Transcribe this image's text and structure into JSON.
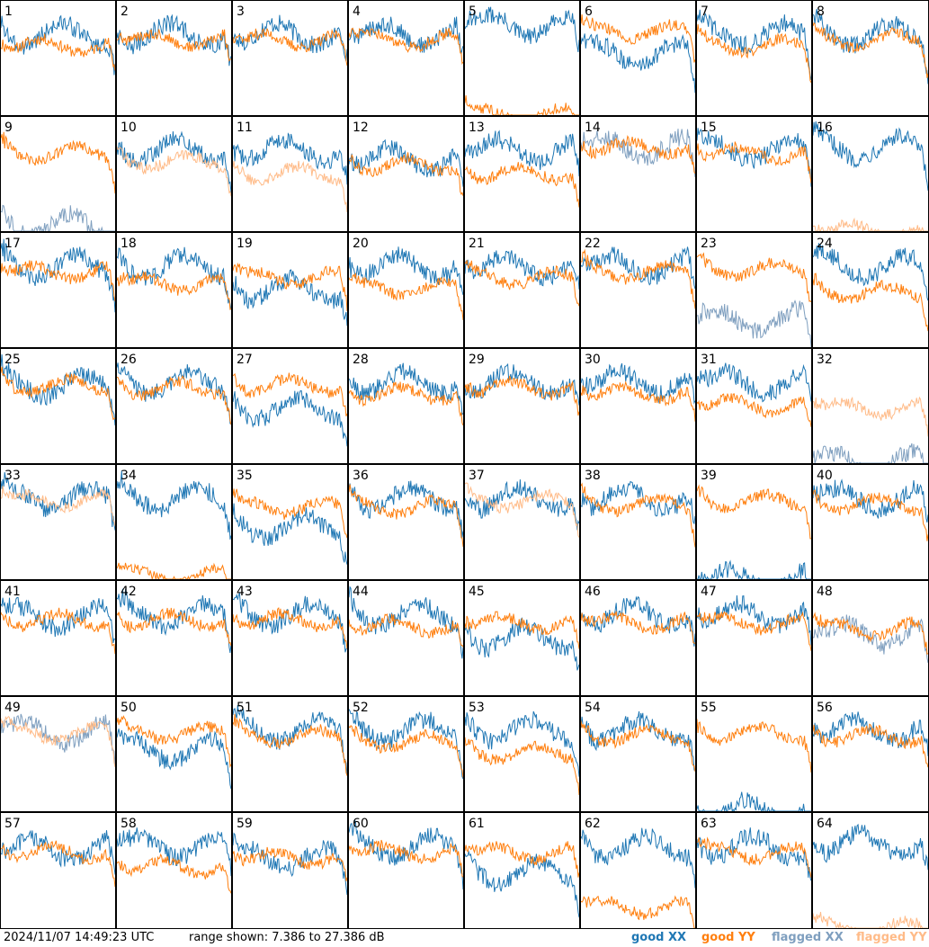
{
  "footer": {
    "timestamp": "2024/11/07 14:49:23 UTC",
    "range": "range shown: 7.386 to 27.386 dB",
    "legend_good_xx": "good XX",
    "legend_good_yy": "good YY",
    "legend_flagged_xx": "flagged XX",
    "legend_flagged_yy": "flagged YY"
  },
  "colors": {
    "good_xx": "#1f77b4",
    "good_yy": "#ff7f0e",
    "flagged_xx": "#7f9fbf",
    "flagged_yy": "#ffbb88",
    "frame": "#000000",
    "background": "#ffffff"
  },
  "chart_data": {
    "type": "line",
    "layout": "8x8 small multiples",
    "ylim": [
      7.386,
      27.386
    ],
    "yunit": "dB",
    "series_legend": [
      "good XX",
      "good YY",
      "flagged XX",
      "flagged YY"
    ],
    "panels": [
      {
        "label": "1",
        "xx": "good",
        "yy": "good",
        "xx_level": 21.5,
        "yy_level": 19.5
      },
      {
        "label": "2",
        "xx": "good",
        "yy": "good",
        "xx_level": 21.5,
        "yy_level": 20.5
      },
      {
        "label": "3",
        "xx": "good",
        "yy": "good",
        "xx_level": 21.5,
        "yy_level": 20.5
      },
      {
        "label": "4",
        "xx": "good",
        "yy": "good",
        "xx_level": 21.5,
        "yy_level": 20.5
      },
      {
        "label": "5",
        "xx": "good",
        "yy": "good",
        "xx_level": 23.0,
        "yy_level": 7.4
      },
      {
        "label": "6",
        "xx": "good",
        "yy": "good",
        "xx_level": 18.0,
        "yy_level": 22.0
      },
      {
        "label": "7",
        "xx": "good",
        "yy": "good",
        "xx_level": 21.5,
        "yy_level": 19.5
      },
      {
        "label": "8",
        "xx": "good",
        "yy": "good",
        "xx_level": 21.5,
        "yy_level": 20.5
      },
      {
        "label": "9",
        "xx": "flagged",
        "yy": "good",
        "xx_level": 8.5,
        "yy_level": 21.0
      },
      {
        "label": "10",
        "xx": "good",
        "yy": "flagged",
        "xx_level": 21.5,
        "yy_level": 19.5
      },
      {
        "label": "11",
        "xx": "good",
        "yy": "flagged",
        "xx_level": 21.5,
        "yy_level": 17.5
      },
      {
        "label": "12",
        "xx": "good",
        "yy": "good",
        "xx_level": 20.0,
        "yy_level": 19.0
      },
      {
        "label": "13",
        "xx": "good",
        "yy": "good",
        "xx_level": 21.5,
        "yy_level": 17.5
      },
      {
        "label": "14",
        "xx": "flagged",
        "yy": "good",
        "xx_level": 22.0,
        "yy_level": 22.0
      },
      {
        "label": "15",
        "xx": "good",
        "yy": "good",
        "xx_level": 21.5,
        "yy_level": 21.0
      },
      {
        "label": "16",
        "xx": "good",
        "yy": "flagged",
        "xx_level": 22.0,
        "yy_level": 7.4
      },
      {
        "label": "17",
        "xx": "good",
        "yy": "good",
        "xx_level": 21.5,
        "yy_level": 20.5
      },
      {
        "label": "18",
        "xx": "good",
        "yy": "good",
        "xx_level": 21.5,
        "yy_level": 18.5
      },
      {
        "label": "19",
        "xx": "good",
        "yy": "good",
        "xx_level": 17.5,
        "yy_level": 19.5
      },
      {
        "label": "20",
        "xx": "good",
        "yy": "good",
        "xx_level": 21.5,
        "yy_level": 17.5
      },
      {
        "label": "21",
        "xx": "good",
        "yy": "good",
        "xx_level": 21.5,
        "yy_level": 19.5
      },
      {
        "label": "22",
        "xx": "good",
        "yy": "good",
        "xx_level": 21.5,
        "yy_level": 20.5
      },
      {
        "label": "23",
        "xx": "flagged",
        "yy": "good",
        "xx_level": 12.0,
        "yy_level": 21.0
      },
      {
        "label": "24",
        "xx": "good",
        "yy": "good",
        "xx_level": 21.5,
        "yy_level": 17.0
      },
      {
        "label": "25",
        "xx": "good",
        "yy": "good",
        "xx_level": 21.0,
        "yy_level": 21.0
      },
      {
        "label": "26",
        "xx": "good",
        "yy": "good",
        "xx_level": 21.5,
        "yy_level": 20.5
      },
      {
        "label": "27",
        "xx": "good",
        "yy": "good",
        "xx_level": 17.0,
        "yy_level": 21.0
      },
      {
        "label": "28",
        "xx": "good",
        "yy": "good",
        "xx_level": 21.5,
        "yy_level": 19.5
      },
      {
        "label": "29",
        "xx": "good",
        "yy": "good",
        "xx_level": 21.5,
        "yy_level": 20.5
      },
      {
        "label": "30",
        "xx": "good",
        "yy": "good",
        "xx_level": 21.5,
        "yy_level": 19.5
      },
      {
        "label": "31",
        "xx": "good",
        "yy": "good",
        "xx_level": 21.5,
        "yy_level": 17.5
      },
      {
        "label": "32",
        "xx": "flagged",
        "yy": "flagged",
        "xx_level": 7.4,
        "yy_level": 17.0
      },
      {
        "label": "33",
        "xx": "good",
        "yy": "flagged",
        "xx_level": 21.5,
        "yy_level": 21.0
      },
      {
        "label": "34",
        "xx": "good",
        "yy": "good",
        "xx_level": 21.5,
        "yy_level": 8.0
      },
      {
        "label": "35",
        "xx": "good",
        "yy": "good",
        "xx_level": 16.5,
        "yy_level": 20.0
      },
      {
        "label": "36",
        "xx": "good",
        "yy": "good",
        "xx_level": 21.5,
        "yy_level": 20.0
      },
      {
        "label": "37",
        "xx": "good",
        "yy": "flagged",
        "xx_level": 21.5,
        "yy_level": 21.0
      },
      {
        "label": "38",
        "xx": "good",
        "yy": "good",
        "xx_level": 21.5,
        "yy_level": 20.5
      },
      {
        "label": "39",
        "xx": "good",
        "yy": "good",
        "xx_level": 7.4,
        "yy_level": 21.0
      },
      {
        "label": "40",
        "xx": "good",
        "yy": "good",
        "xx_level": 21.5,
        "yy_level": 20.5
      },
      {
        "label": "41",
        "xx": "good",
        "yy": "good",
        "xx_level": 21.0,
        "yy_level": 20.5
      },
      {
        "label": "42",
        "xx": "good",
        "yy": "good",
        "xx_level": 21.5,
        "yy_level": 20.5
      },
      {
        "label": "43",
        "xx": "good",
        "yy": "good",
        "xx_level": 21.5,
        "yy_level": 20.5
      },
      {
        "label": "44",
        "xx": "good",
        "yy": "good",
        "xx_level": 21.5,
        "yy_level": 19.5
      },
      {
        "label": "45",
        "xx": "good",
        "yy": "good",
        "xx_level": 17.5,
        "yy_level": 20.0
      },
      {
        "label": "46",
        "xx": "good",
        "yy": "good",
        "xx_level": 21.5,
        "yy_level": 20.0
      },
      {
        "label": "47",
        "xx": "good",
        "yy": "good",
        "xx_level": 21.5,
        "yy_level": 20.0
      },
      {
        "label": "48",
        "xx": "flagged",
        "yy": "good",
        "xx_level": 18.0,
        "yy_level": 19.0
      },
      {
        "label": "49",
        "xx": "flagged",
        "yy": "flagged",
        "xx_level": 21.0,
        "yy_level": 21.0
      },
      {
        "label": "50",
        "xx": "good",
        "yy": "good",
        "xx_level": 18.0,
        "yy_level": 21.0
      },
      {
        "label": "51",
        "xx": "good",
        "yy": "good",
        "xx_level": 21.5,
        "yy_level": 20.5
      },
      {
        "label": "52",
        "xx": "good",
        "yy": "good",
        "xx_level": 21.5,
        "yy_level": 19.5
      },
      {
        "label": "53",
        "xx": "good",
        "yy": "good",
        "xx_level": 21.5,
        "yy_level": 17.5
      },
      {
        "label": "54",
        "xx": "good",
        "yy": "good",
        "xx_level": 21.5,
        "yy_level": 20.5
      },
      {
        "label": "55",
        "xx": "good",
        "yy": "good",
        "xx_level": 7.4,
        "yy_level": 21.0
      },
      {
        "label": "56",
        "xx": "good",
        "yy": "good",
        "xx_level": 21.5,
        "yy_level": 20.5
      },
      {
        "label": "57",
        "xx": "good",
        "yy": "good",
        "xx_level": 21.0,
        "yy_level": 20.5
      },
      {
        "label": "58",
        "xx": "good",
        "yy": "good",
        "xx_level": 21.5,
        "yy_level": 18.0
      },
      {
        "label": "59",
        "xx": "good",
        "yy": "good",
        "xx_level": 19.5,
        "yy_level": 19.5
      },
      {
        "label": "60",
        "xx": "good",
        "yy": "good",
        "xx_level": 21.5,
        "yy_level": 20.5
      },
      {
        "label": "61",
        "xx": "good",
        "yy": "good",
        "xx_level": 17.0,
        "yy_level": 20.5
      },
      {
        "label": "62",
        "xx": "good",
        "yy": "good",
        "xx_level": 21.5,
        "yy_level": 11.0
      },
      {
        "label": "63",
        "xx": "good",
        "yy": "good",
        "xx_level": 21.5,
        "yy_level": 20.5
      },
      {
        "label": "64",
        "xx": "good",
        "yy": "flagged",
        "xx_level": 22.0,
        "yy_level": 7.4
      }
    ]
  }
}
